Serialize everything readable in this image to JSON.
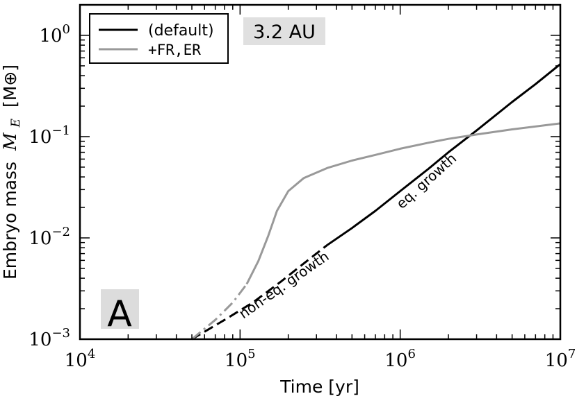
{
  "chart_data": {
    "type": "line",
    "xlabel": "Time [yr]",
    "ylabel": "Embryo mass",
    "ylabel_symbol": "M",
    "ylabel_sub": "E",
    "ylabel_unit": "[M⊕]",
    "xscale": "log",
    "yscale": "log",
    "xlim": [
      10000,
      10000000
    ],
    "ylim": [
      0.001,
      2.0
    ],
    "x_ticks": [
      {
        "base": "10",
        "exp": "4",
        "value": 10000
      },
      {
        "base": "10",
        "exp": "5",
        "value": 100000
      },
      {
        "base": "10",
        "exp": "6",
        "value": 1000000
      },
      {
        "base": "10",
        "exp": "7",
        "value": 10000000
      }
    ],
    "y_ticks": [
      {
        "base": "10",
        "exp": "−3",
        "value": 0.001
      },
      {
        "base": "10",
        "exp": "−2",
        "value": 0.01
      },
      {
        "base": "10",
        "exp": "−1",
        "value": 0.1
      },
      {
        "base": "10",
        "exp": "0",
        "value": 1
      }
    ],
    "legend_placement": "top-left",
    "series": [
      {
        "name": "(default)",
        "color": "#000000",
        "segments": [
          {
            "style": "dashed",
            "label": "non-eq. growth",
            "x": [
              50000,
              80000,
              120000,
              180000,
              250000,
              350000
            ],
            "y": [
              0.001,
              0.00155,
              0.0023,
              0.0037,
              0.0056,
              0.0085
            ]
          },
          {
            "style": "solid",
            "label": "eq. growth",
            "x": [
              350000,
              500000,
              700000,
              1000000,
              1500000,
              2000000,
              3000000,
              5000000,
              7000000,
              10000000
            ],
            "y": [
              0.0085,
              0.0125,
              0.0185,
              0.029,
              0.048,
              0.07,
              0.115,
              0.22,
              0.33,
              0.52
            ]
          }
        ]
      },
      {
        "name": "+FR,ER",
        "color": "#999999",
        "segments": [
          {
            "style": "dashdot",
            "x": [
              50000,
              70000,
              90000,
              110000
            ],
            "y": [
              0.001,
              0.00155,
              0.0023,
              0.0035
            ]
          },
          {
            "style": "solid",
            "x": [
              110000,
              130000,
              150000,
              170000,
              200000,
              250000,
              350000,
              500000,
              700000,
              1000000,
              1500000,
              2000000,
              3000000,
              5000000,
              10000000
            ],
            "y": [
              0.0035,
              0.0059,
              0.0105,
              0.0185,
              0.029,
              0.039,
              0.049,
              0.058,
              0.066,
              0.076,
              0.087,
              0.095,
              0.105,
              0.118,
              0.135
            ]
          }
        ]
      }
    ],
    "annotations": {
      "location": "3.2 AU",
      "panel": "A"
    }
  }
}
